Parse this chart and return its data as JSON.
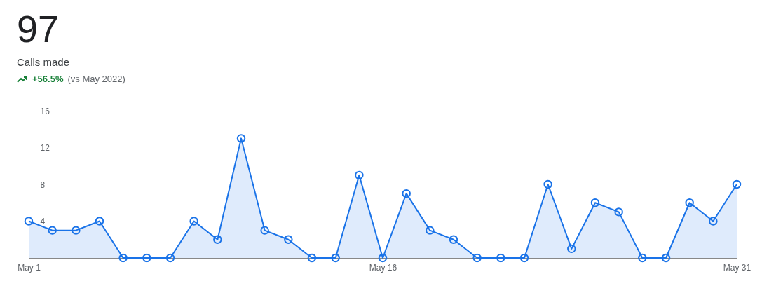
{
  "chart_data": {
    "type": "area",
    "title": "97",
    "subtitle": "Calls made",
    "annotations": [
      "+56.5% (vs May 2022)"
    ],
    "categories": [
      "May 1",
      null,
      null,
      null,
      null,
      null,
      null,
      null,
      null,
      null,
      null,
      null,
      null,
      null,
      null,
      "May 16",
      null,
      null,
      null,
      null,
      null,
      null,
      null,
      null,
      null,
      null,
      null,
      null,
      null,
      null,
      "May 31"
    ],
    "series": [
      {
        "color": "#1a73e8",
        "values": [
          4,
          3,
          3,
          4,
          0,
          0,
          0,
          4,
          2,
          13,
          3,
          2,
          0,
          0,
          9,
          0,
          7,
          3,
          2,
          0,
          0,
          0,
          8,
          1,
          6,
          5,
          0,
          0,
          6,
          4,
          8
        ]
      }
    ],
    "ylim": [
      0,
      16
    ],
    "yticks": [
      4,
      8,
      12,
      16
    ],
    "grid": "x",
    "marker": "circle",
    "line_style": "solid"
  }
}
